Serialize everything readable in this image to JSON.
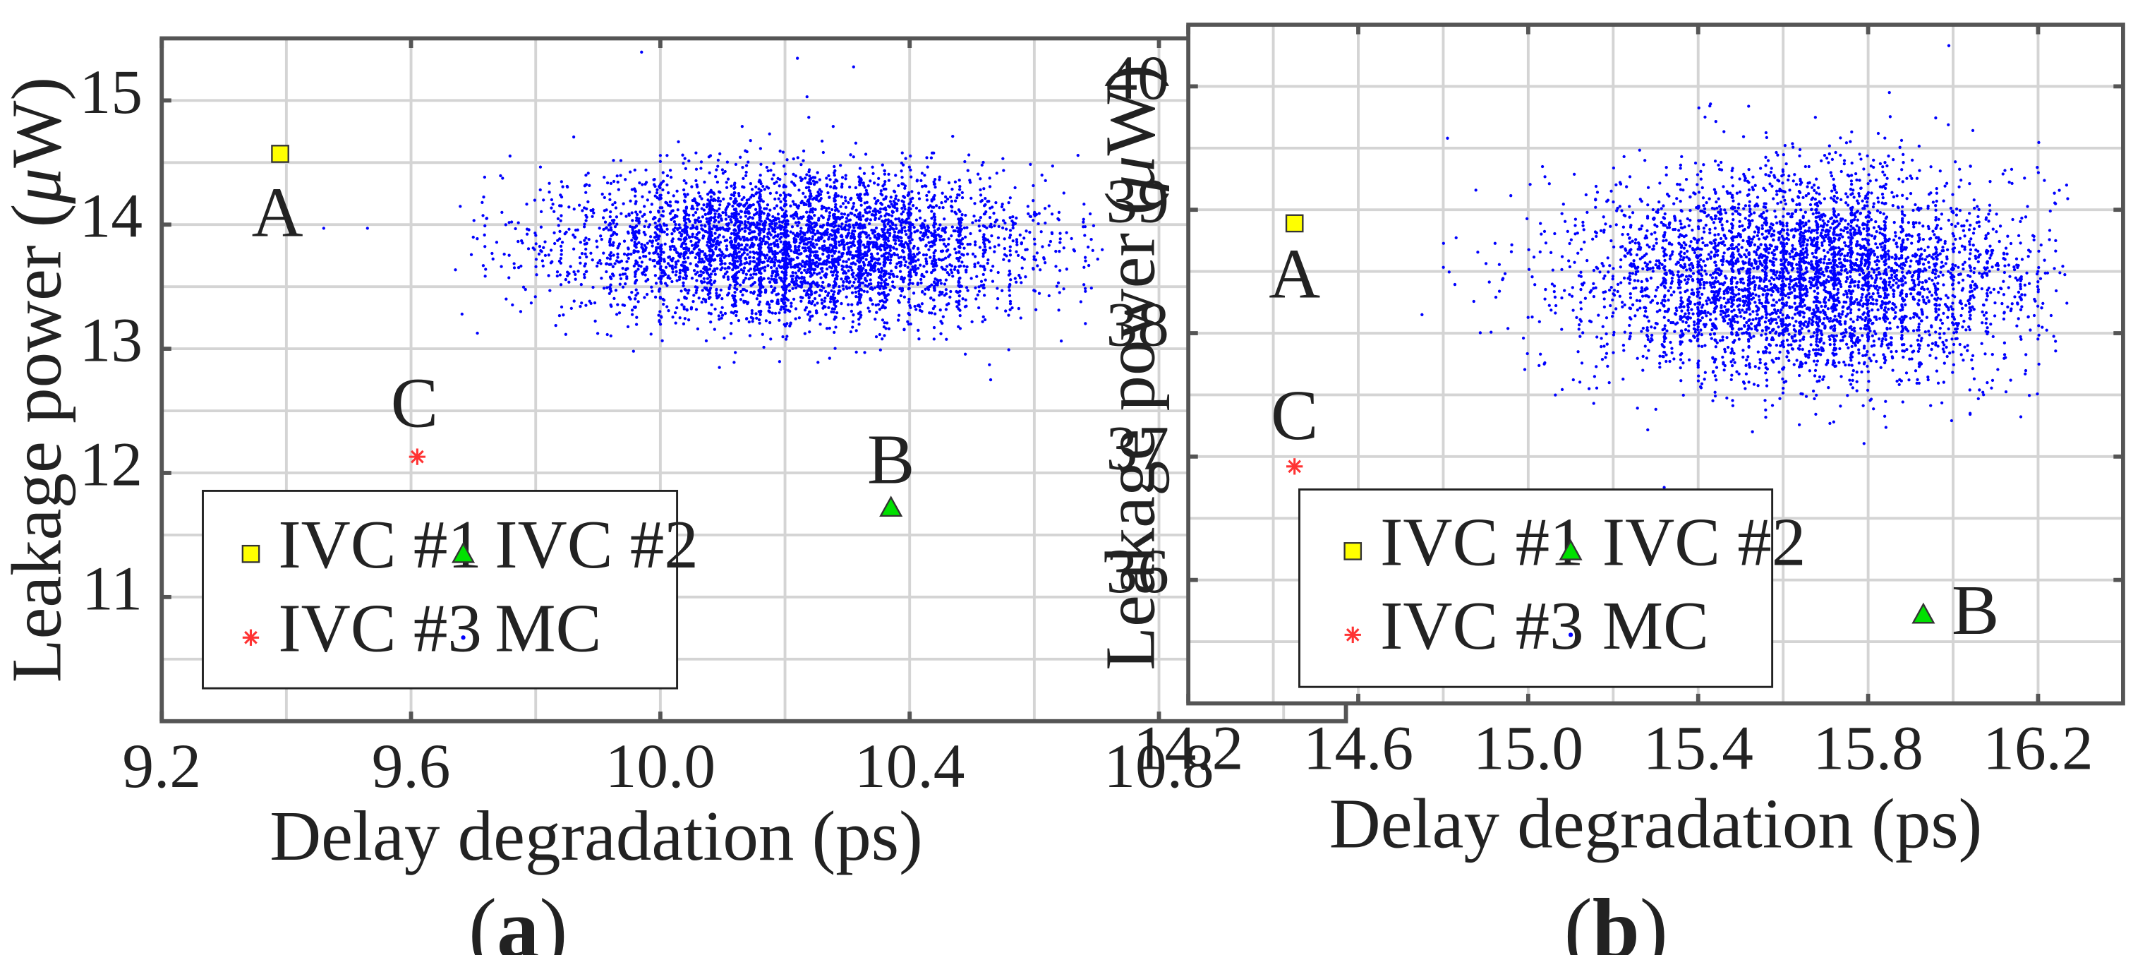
{
  "chart_data": [
    {
      "type": "scatter",
      "panel_label": "a",
      "xlabel": "Delay degradation (ps)",
      "ylabel": "Leakage power (",
      "ylabel_mu": "μ",
      "ylabel_unit": "W)",
      "xlim": [
        9.2,
        11.1
      ],
      "ylim": [
        10.0,
        15.5
      ],
      "xticks": [
        "9.2",
        "9.6",
        "10.0",
        "10.4",
        "10.8"
      ],
      "xtick_values": [
        9.2,
        9.6,
        10.0,
        10.4,
        10.8
      ],
      "yticks": [
        "11",
        "12",
        "13",
        "14",
        "15"
      ],
      "ytick_values": [
        11,
        12,
        13,
        14,
        15
      ],
      "grid": true,
      "legend_placement": "lower-left",
      "series": [
        {
          "name": "IVC #1",
          "marker": "square",
          "color": "#ffff00",
          "points": [
            {
              "x": 9.39,
              "y": 14.57,
              "label": "A"
            }
          ]
        },
        {
          "name": "IVC #2",
          "marker": "triangle",
          "color": "#00e000",
          "points": [
            {
              "x": 10.37,
              "y": 11.72,
              "label": "B"
            }
          ]
        },
        {
          "name": "IVC #3",
          "marker": "asterisk",
          "color": "#ff3333",
          "points": [
            {
              "x": 9.61,
              "y": 12.13,
              "label": "C"
            }
          ]
        },
        {
          "name": "MC",
          "marker": "dot",
          "color": "#0000ff",
          "count": 4500,
          "x_center": 10.22,
          "x_spread": 0.19,
          "x_min": 9.67,
          "x_max": 10.71,
          "y_center": 13.82,
          "y_spread": 0.3,
          "y_min": 12.6,
          "y_max": 15.35,
          "outliers": [
            {
              "x": 9.46,
              "y": 13.97
            },
            {
              "x": 9.53,
              "y": 13.97
            },
            {
              "x": 9.97,
              "y": 15.39
            },
            {
              "x": 10.22,
              "y": 15.34
            },
            {
              "x": 10.31,
              "y": 15.27
            },
            {
              "x": 10.53,
              "y": 12.75
            }
          ]
        }
      ]
    },
    {
      "type": "scatter",
      "panel_label": "b",
      "xlabel": "Delay degradation (ps)",
      "ylabel": "Leakage power (",
      "ylabel_mu": "μ",
      "ylabel_unit": "W)",
      "xlim": [
        14.2,
        16.4
      ],
      "ylim": [
        35.0,
        40.5
      ],
      "xticks": [
        "14.2",
        "14.6",
        "15.0",
        "15.4",
        "15.8",
        "16.2"
      ],
      "xtick_values": [
        14.2,
        14.6,
        15.0,
        15.4,
        15.8,
        16.2
      ],
      "yticks": [
        "36",
        "37",
        "38",
        "39",
        "40"
      ],
      "ytick_values": [
        36,
        37,
        38,
        39,
        40
      ],
      "grid": true,
      "legend_placement": "lower-left",
      "series": [
        {
          "name": "IVC #1",
          "marker": "square",
          "color": "#ffff00",
          "points": [
            {
              "x": 14.45,
              "y": 38.89,
              "label": "A"
            }
          ]
        },
        {
          "name": "IVC #2",
          "marker": "triangle",
          "color": "#00e000",
          "points": [
            {
              "x": 15.93,
              "y": 35.72,
              "label": "B"
            }
          ]
        },
        {
          "name": "IVC #3",
          "marker": "asterisk",
          "color": "#ff3333",
          "points": [
            {
              "x": 14.45,
              "y": 36.92,
              "label": "C"
            }
          ]
        },
        {
          "name": "MC",
          "marker": "dot",
          "color": "#0000ff",
          "count": 4500,
          "x_center": 15.65,
          "x_spread": 0.26,
          "x_min": 14.75,
          "x_max": 16.27,
          "y_center": 38.45,
          "y_spread": 0.42,
          "y_min": 37.0,
          "y_max": 40.35,
          "outliers": [
            {
              "x": 14.75,
              "y": 38.15
            },
            {
              "x": 14.81,
              "y": 39.58
            },
            {
              "x": 15.32,
              "y": 36.75
            },
            {
              "x": 15.99,
              "y": 40.33
            },
            {
              "x": 15.85,
              "y": 39.95
            }
          ]
        }
      ]
    }
  ]
}
